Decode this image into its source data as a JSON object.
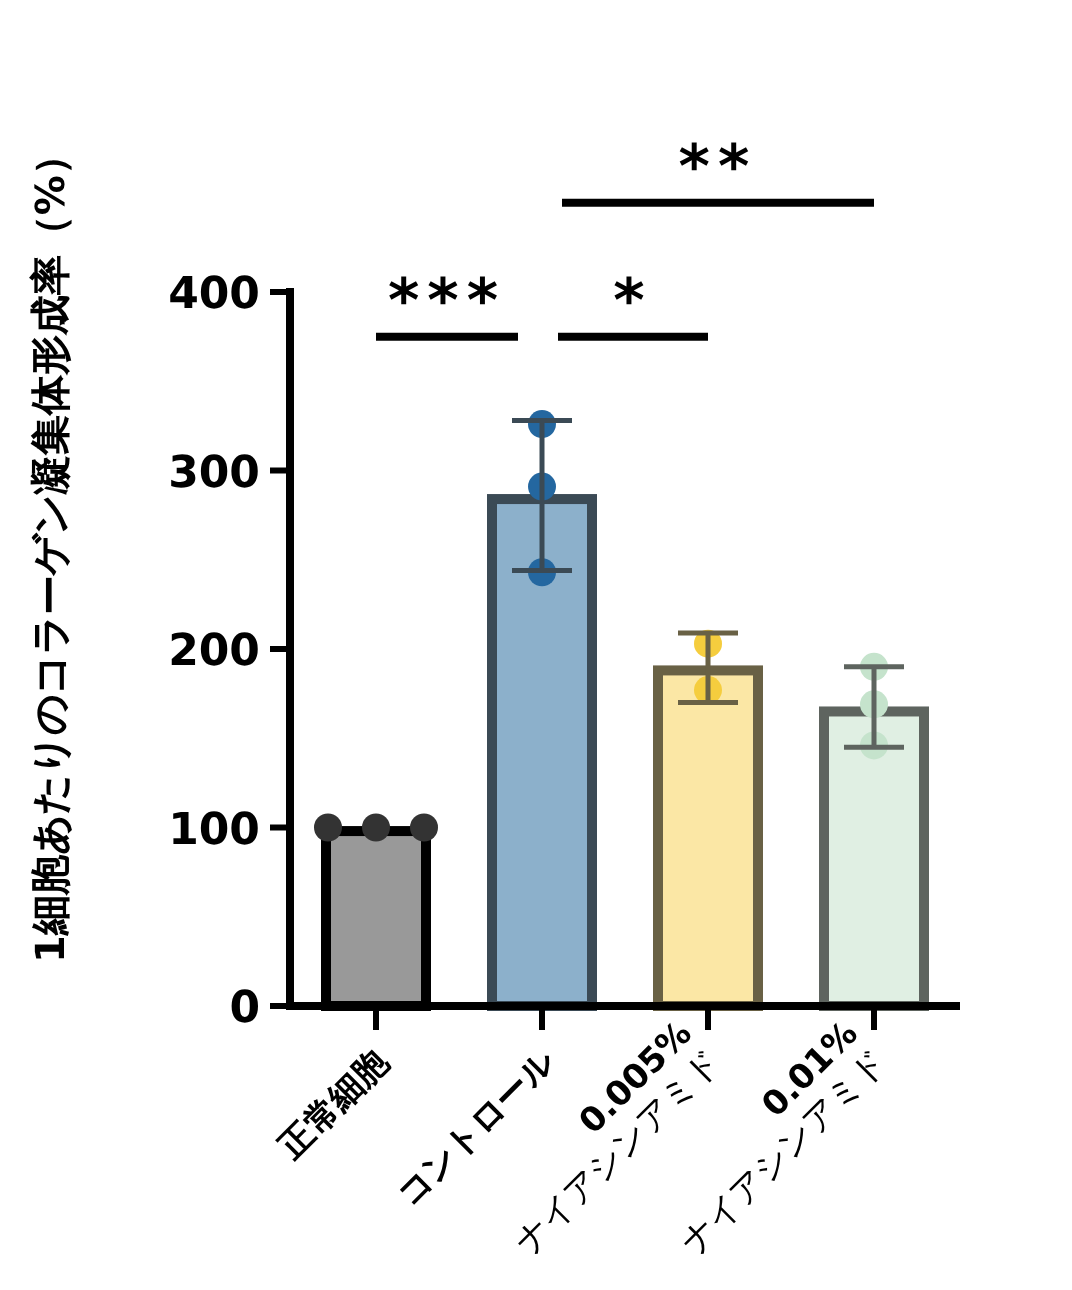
{
  "chart_data": {
    "type": "bar",
    "ylabel": "1細胞あたりのコラーゲン凝集体形成率（%）",
    "categories": [
      "正常細胞",
      "コントロール",
      "0.005%\nナイアシンアミド",
      "0.01%\nナイアシンアミド"
    ],
    "ylim": [
      0,
      400
    ],
    "yticks": [
      0,
      100,
      200,
      300,
      400
    ],
    "grid": false,
    "series": [
      {
        "type": "bar",
        "values": [
          98,
          284,
          188,
          165
        ],
        "colors": [
          "#999999",
          "#8cb0cb",
          "#fbe7a5",
          "#e0efe3"
        ],
        "errors": [
          null,
          [
            244,
            328
          ],
          [
            170,
            209
          ],
          [
            145,
            190
          ]
        ]
      },
      {
        "type": "scatter",
        "marker": "circle",
        "x": [
          "正常細胞",
          "正常細胞",
          "正常細胞",
          "コントロール",
          "コントロール",
          "コントロール",
          "0.005%\nナイアシンアミド",
          "0.005%\nナイアシンアミド",
          "0.01%\nナイアシンアミド",
          "0.01%\nナイアシンアミド",
          "0.01%\nナイアシンアミド"
        ],
        "values": [
          100,
          100,
          100,
          326,
          291,
          243,
          203,
          177,
          190,
          169,
          146
        ],
        "colors": [
          "#333333",
          "#333333",
          "#333333",
          "#2467a0",
          "#2467a0",
          "#2467a0",
          "#f5cd3e",
          "#f5cd3e",
          "#c5e3cc",
          "#c5e3cc",
          "#c5e3cc"
        ]
      }
    ],
    "annotations": [
      "***",
      "*",
      "**"
    ]
  }
}
